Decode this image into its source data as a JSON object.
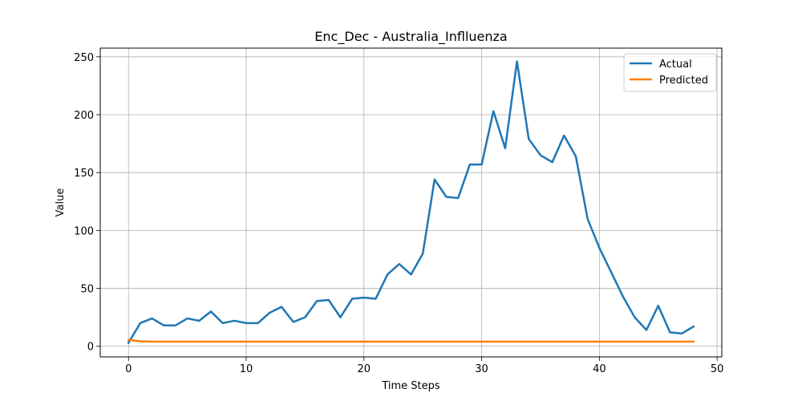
{
  "chart_data": {
    "type": "line",
    "title": "Enc_Dec - Australia_Inflluenza",
    "xlabel": "Time Steps",
    "ylabel": "Value",
    "xlim": [
      -2.4,
      50.4
    ],
    "ylim": [
      -9.2,
      257.5
    ],
    "xticks": [
      0,
      10,
      20,
      30,
      40,
      50
    ],
    "yticks": [
      0,
      50,
      100,
      150,
      200,
      250
    ],
    "grid": true,
    "legend_position": "top-right",
    "series": [
      {
        "name": "Actual",
        "color": "#1f77b4",
        "x": [
          0,
          1,
          2,
          3,
          4,
          5,
          6,
          7,
          8,
          9,
          10,
          11,
          12,
          13,
          14,
          15,
          16,
          17,
          18,
          19,
          20,
          21,
          22,
          23,
          24,
          25,
          26,
          27,
          28,
          29,
          30,
          31,
          32,
          33,
          34,
          35,
          36,
          37,
          38,
          39,
          40,
          41,
          42,
          43,
          44,
          45,
          46,
          47,
          48
        ],
        "values": [
          3,
          20,
          24,
          18,
          18,
          24,
          22,
          30,
          20,
          22,
          20,
          20,
          29,
          34,
          21,
          25,
          39,
          40,
          25,
          41,
          42,
          41,
          62,
          71,
          62,
          80,
          144,
          129,
          128,
          157,
          157,
          203,
          171,
          246,
          179,
          165,
          159,
          182,
          164,
          110,
          85,
          64,
          43,
          25,
          14,
          35,
          12,
          11,
          17
        ]
      },
      {
        "name": "Predicted",
        "color": "#ff7f0e",
        "x": [
          0,
          1,
          2,
          3,
          4,
          5,
          6,
          7,
          8,
          9,
          10,
          11,
          12,
          13,
          14,
          15,
          16,
          17,
          18,
          19,
          20,
          21,
          22,
          23,
          24,
          25,
          26,
          27,
          28,
          29,
          30,
          31,
          32,
          33,
          34,
          35,
          36,
          37,
          38,
          39,
          40,
          41,
          42,
          43,
          44,
          45,
          46,
          47,
          48
        ],
        "values": [
          5.5,
          4.3,
          4,
          4,
          4,
          4,
          4,
          4,
          4,
          4,
          4,
          4,
          4,
          4,
          4,
          4,
          4,
          4,
          4,
          4,
          4,
          4,
          4,
          4,
          4,
          4,
          4,
          4,
          4,
          4,
          4,
          4,
          4,
          4,
          4,
          4,
          4,
          4,
          4,
          4,
          4,
          4,
          4,
          4,
          4,
          4,
          4,
          4,
          4
        ]
      }
    ]
  }
}
